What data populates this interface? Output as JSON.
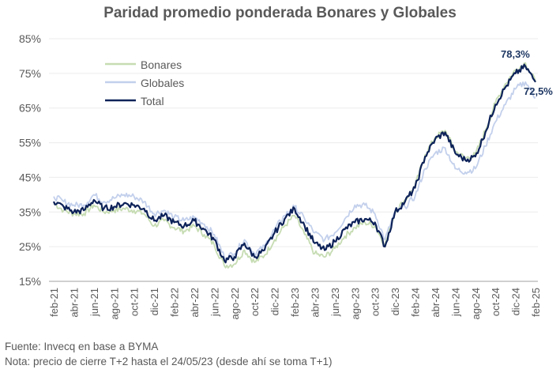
{
  "chart_data": {
    "type": "line",
    "title": "Paridad promedio ponderada Bonares y Globales",
    "xlabel": "",
    "ylabel": "",
    "ylim": [
      15,
      85
    ],
    "yticks": [
      "15%",
      "25%",
      "35%",
      "45%",
      "55%",
      "65%",
      "75%",
      "85%"
    ],
    "ytick_values": [
      15,
      25,
      35,
      45,
      55,
      65,
      75,
      85
    ],
    "xticks": [
      "feb-21",
      "abr-21",
      "jun-21",
      "ago-21",
      "oct-21",
      "dic-21",
      "feb-22",
      "abr-22",
      "jun-22",
      "ago-22",
      "oct-22",
      "dic-22",
      "feb-23",
      "abr-23",
      "jun-23",
      "ago-23",
      "oct-23",
      "dic-23",
      "feb-24",
      "abr-24",
      "jun-24",
      "ago-24",
      "oct-24",
      "dic-24",
      "feb-25"
    ],
    "x_months": 49,
    "grid": true,
    "legend_position": "top-left",
    "series": [
      {
        "name": "Bonares",
        "color": "#c6dcb2",
        "values": [
          37.5,
          35.5,
          34.5,
          34.5,
          37,
          35,
          35.5,
          36,
          35.5,
          34.5,
          31,
          32.5,
          30.5,
          29.5,
          31,
          28.5,
          25.5,
          19.5,
          20,
          24,
          20.5,
          22.5,
          27,
          31,
          34,
          28.5,
          23,
          22,
          24.5,
          28,
          30.5,
          32,
          31,
          25.5,
          35,
          38.5,
          42.5,
          51.5,
          56.5,
          58.5,
          52.5,
          50.5,
          51.5,
          58.5,
          66.5,
          72,
          76,
          78,
          72.5
        ]
      },
      {
        "name": "Globales",
        "color": "#c3d0ec",
        "values": [
          39.5,
          38,
          37,
          37,
          40,
          38,
          39,
          40,
          39.5,
          38,
          34.5,
          35.5,
          33.5,
          32.5,
          33.5,
          31.5,
          28.5,
          22,
          23,
          27,
          23,
          25,
          30,
          34,
          36.5,
          33,
          29,
          27,
          29,
          33,
          37,
          37,
          34.5,
          27,
          35,
          36.5,
          39.5,
          47.5,
          52,
          53.5,
          47.5,
          46.5,
          47.5,
          54,
          61,
          66,
          70.5,
          72.5,
          68
        ]
      },
      {
        "name": "Total",
        "color": "#0d2259",
        "values": [
          38,
          36.5,
          35,
          35.5,
          38.5,
          36,
          36.5,
          37.5,
          37,
          36,
          32.5,
          34,
          32,
          31,
          32.5,
          30,
          27,
          21,
          22,
          26,
          22,
          24,
          29,
          33,
          36,
          31,
          26,
          24,
          26.5,
          30,
          32,
          33,
          32,
          25,
          35,
          38,
          42,
          51,
          56,
          58,
          52,
          50,
          51,
          58,
          66,
          71,
          75,
          77,
          72.5
        ]
      }
    ],
    "annotations": [
      {
        "text": "78,3%",
        "value": 78.3,
        "series": "Total",
        "label": "max"
      },
      {
        "text": "72,5%",
        "value": 72.5,
        "series": "Total",
        "label": "last"
      }
    ]
  },
  "footer": {
    "source": "Fuente: Invecq en base a BYMA",
    "note": "Nota: precio de cierre T+2 hasta el 24/05/23 (desde ahí se toma T+1)"
  }
}
